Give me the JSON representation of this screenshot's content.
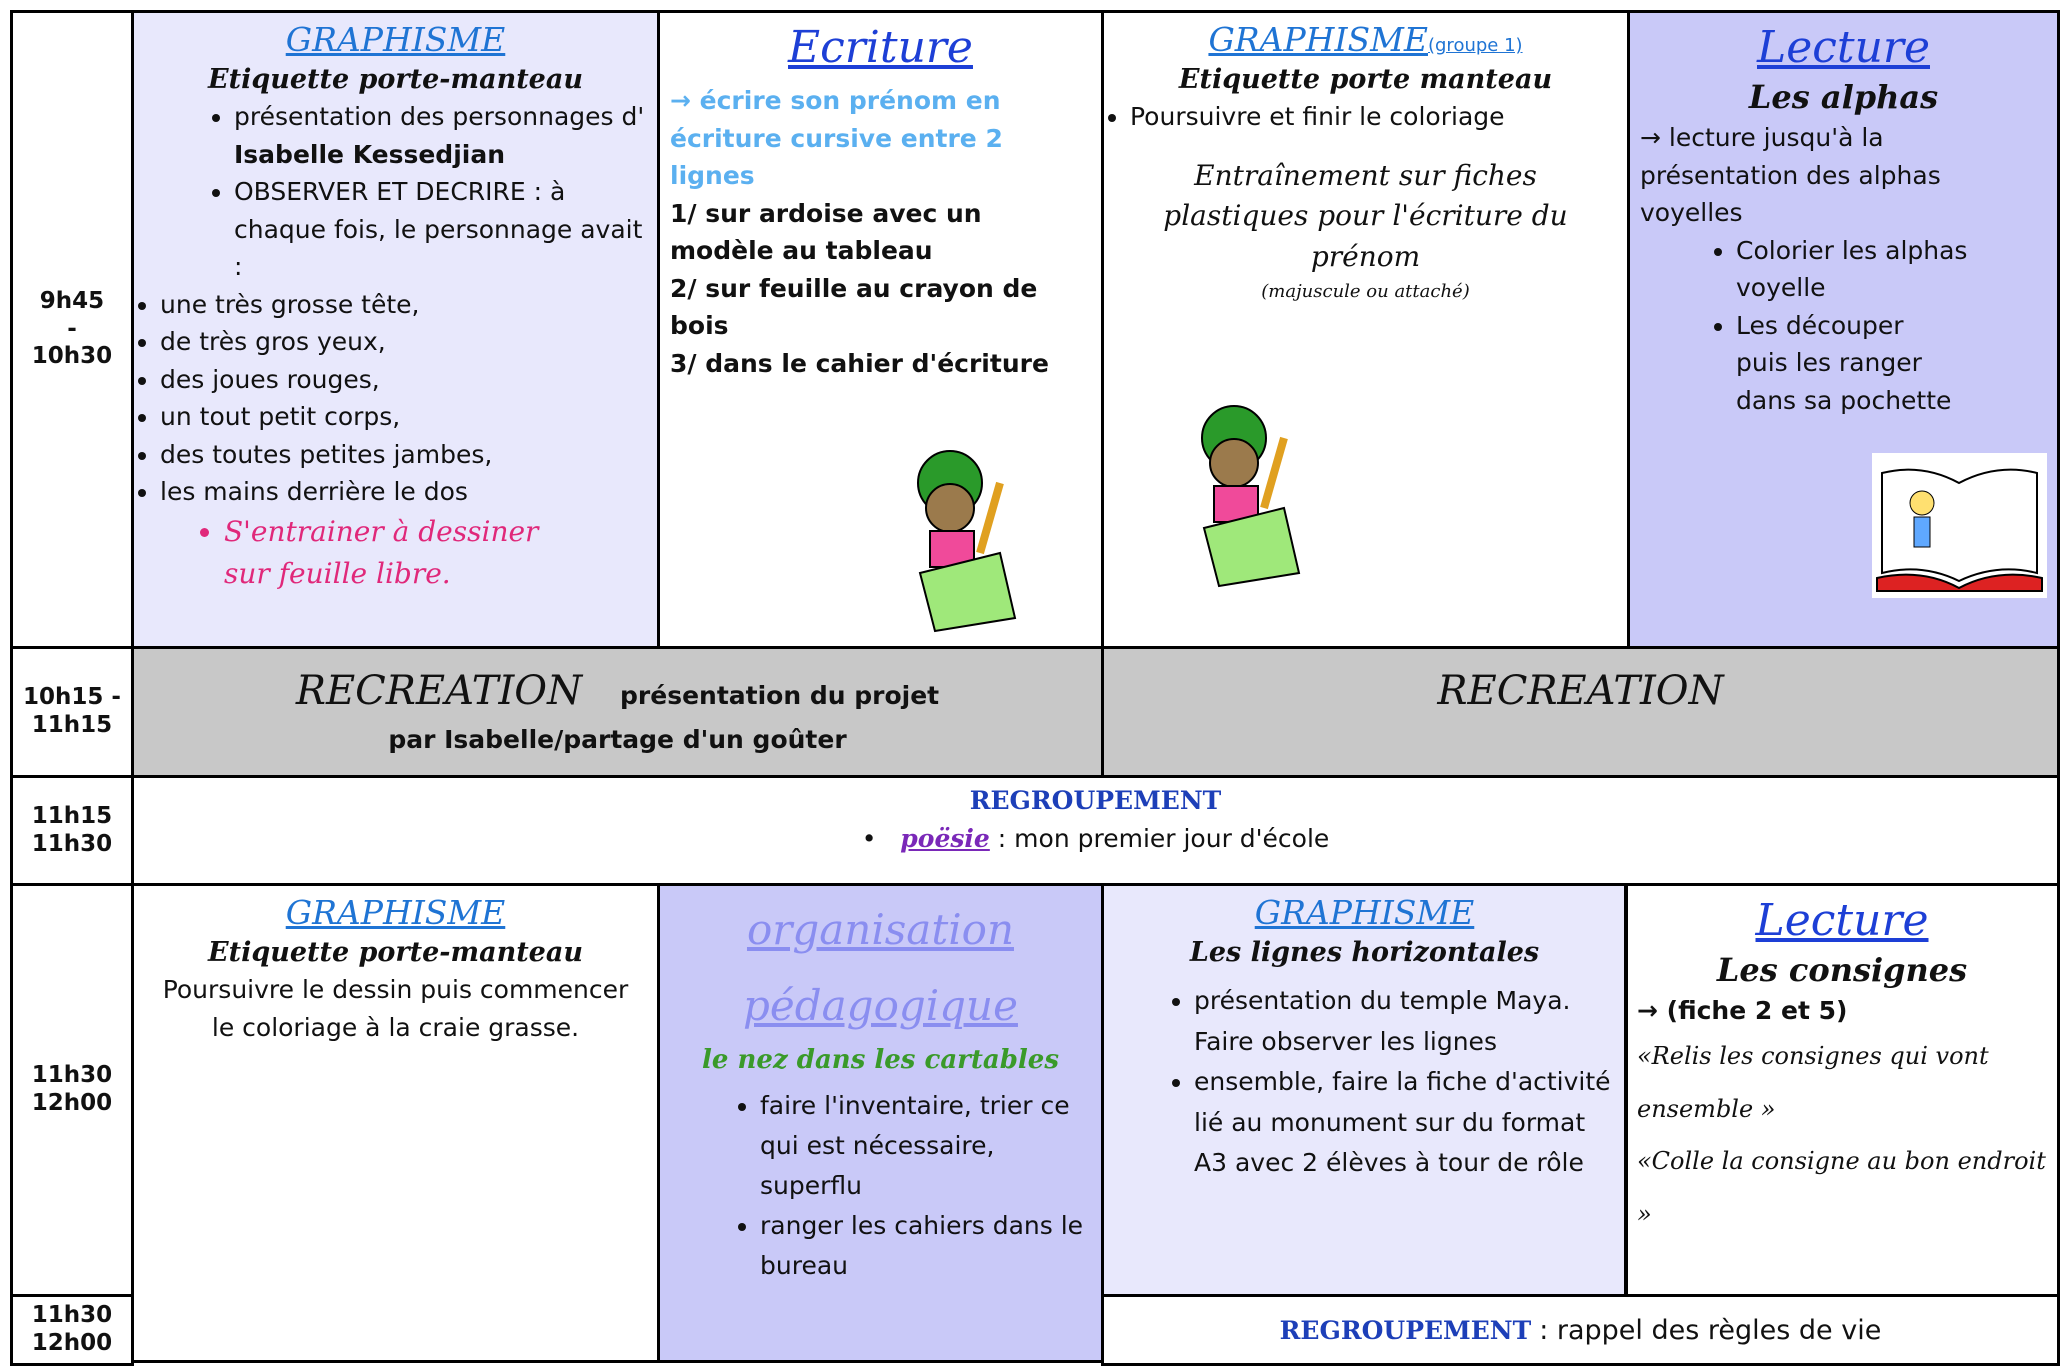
{
  "row1": {
    "time": [
      "9h45",
      "-",
      "10h30"
    ],
    "graphisme": {
      "title": "GRAPHISME",
      "subtitle": "Etiquette porte-manteau",
      "items": [
        "présentation des personnages d'",
        "Isabelle Kessedjian",
        "OBSERVER ET DECRIRE : à chaque fois, le personnage avait :"
      ],
      "features": [
        "une très grosse tête,",
        "de très gros yeux,",
        "des joues rouges,",
        "un tout petit corps,",
        "des toutes petites jambes,",
        "les mains derrière le dos"
      ],
      "exercise": "S'entrainer à dessiner sur feuille libre."
    },
    "ecriture": {
      "title": "Ecriture",
      "intro": "→ écrire son prénom en écriture cursive entre 2 lignes",
      "steps": [
        "1/ sur ardoise avec un modèle au tableau",
        "2/ sur feuille au crayon de bois",
        "3/ dans le cahier d'écriture"
      ]
    },
    "graphisme_groupe": {
      "title": "GRAPHISME",
      "group": "(groupe 1)",
      "subtitle": "Etiquette porte manteau",
      "item": "Poursuivre et finir le coloriage",
      "note": "Entraînement sur fiches plastiques pour l'écriture du prénom",
      "note_detail": "(majuscule ou attaché)"
    },
    "lecture": {
      "title": "Lecture",
      "subtitle": "Les alphas",
      "intro": "→ lecture jusqu'à la présentation des alphas voyelles",
      "items": [
        "Colorier les alphas voyelle",
        "Les découper puis les ranger dans sa pochette"
      ]
    }
  },
  "row2": {
    "time": [
      "10h15 -",
      "11h15"
    ],
    "left_title": "RECREATION",
    "left_text": "présentation du projet par Isabelle/partage d'un goûter",
    "right_title": "RECREATION"
  },
  "row3": {
    "time": [
      "11h15",
      "11h30"
    ],
    "title": "REGROUPEMENT",
    "item_label": "poësie",
    "item_text": ": mon premier jour d'école"
  },
  "row4": {
    "time": [
      "11h30",
      "12h00"
    ],
    "graphisme": {
      "title": "GRAPHISME",
      "subtitle": "Etiquette porte-manteau",
      "text": "Poursuivre le dessin puis commencer le coloriage à la craie grasse."
    },
    "organisation": {
      "title": "organisation pédagogique",
      "subtitle": "le nez dans les cartables",
      "items": [
        "faire l'inventaire, trier ce qui est nécessaire, superflu",
        "ranger les cahiers dans le bureau"
      ]
    },
    "graphisme2": {
      "title": "GRAPHISME",
      "subtitle": "Les lignes horizontales",
      "items": [
        "présentation du temple Maya. Faire observer les lignes",
        "ensemble, faire la fiche d'activité lié au monument sur du format A3 avec 2 élèves à tour de rôle"
      ]
    },
    "lecture": {
      "title": "Lecture",
      "subtitle": "Les consignes",
      "intro": "→ (fiche 2 et 5)",
      "quotes": [
        "«Relis les consignes qui vont ensemble »",
        "«Colle la consigne au bon endroit »"
      ]
    }
  },
  "row5": {
    "time": [
      "11h30",
      "12h00"
    ],
    "title": "REGROUPEMENT",
    "text": ": rappel des règles de vie"
  }
}
